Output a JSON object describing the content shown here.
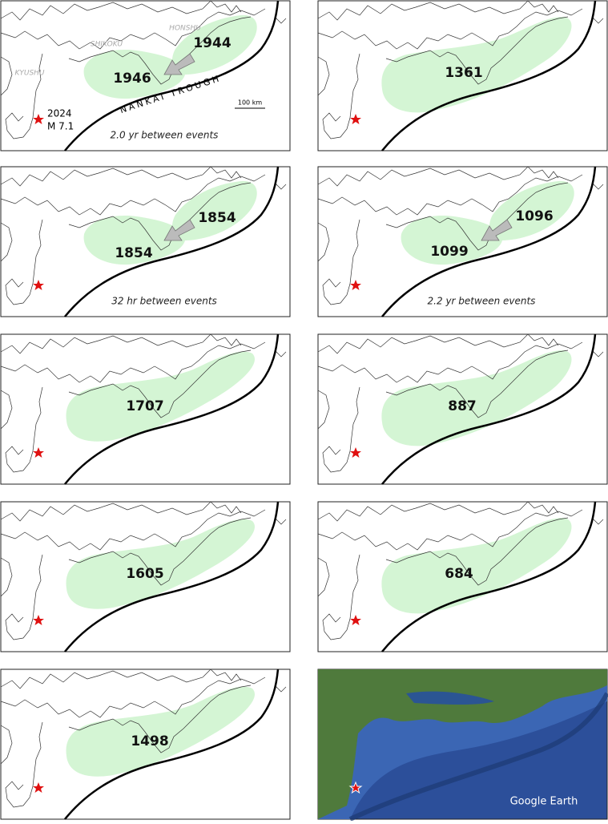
{
  "panels": [
    {
      "zones": [
        {
          "year": "1944"
        },
        {
          "year": "1946"
        }
      ],
      "note": "2.0 yr between events",
      "regions": [
        "HONSHU",
        "SHIKOKU",
        "KYUSHU"
      ],
      "trough_label": "NANKAI TROUGH",
      "scale_label": "100 km",
      "star_year": "2024",
      "star_magnitude": "M 7.1"
    },
    {
      "zones": [
        {
          "year": "1361"
        }
      ]
    },
    {
      "zones": [
        {
          "year": "1854"
        },
        {
          "year": "1854"
        }
      ],
      "note": "32 hr between events"
    },
    {
      "zones": [
        {
          "year": "1096"
        },
        {
          "year": "1099"
        }
      ],
      "note": "2.2 yr between events"
    },
    {
      "zones": [
        {
          "year": "1707"
        }
      ]
    },
    {
      "zones": [
        {
          "year": "887"
        }
      ]
    },
    {
      "zones": [
        {
          "year": "1605"
        }
      ]
    },
    {
      "zones": [
        {
          "year": "684"
        }
      ]
    },
    {
      "zones": [
        {
          "year": "1498"
        }
      ]
    }
  ],
  "satellite": {
    "credit": "Google Earth"
  }
}
